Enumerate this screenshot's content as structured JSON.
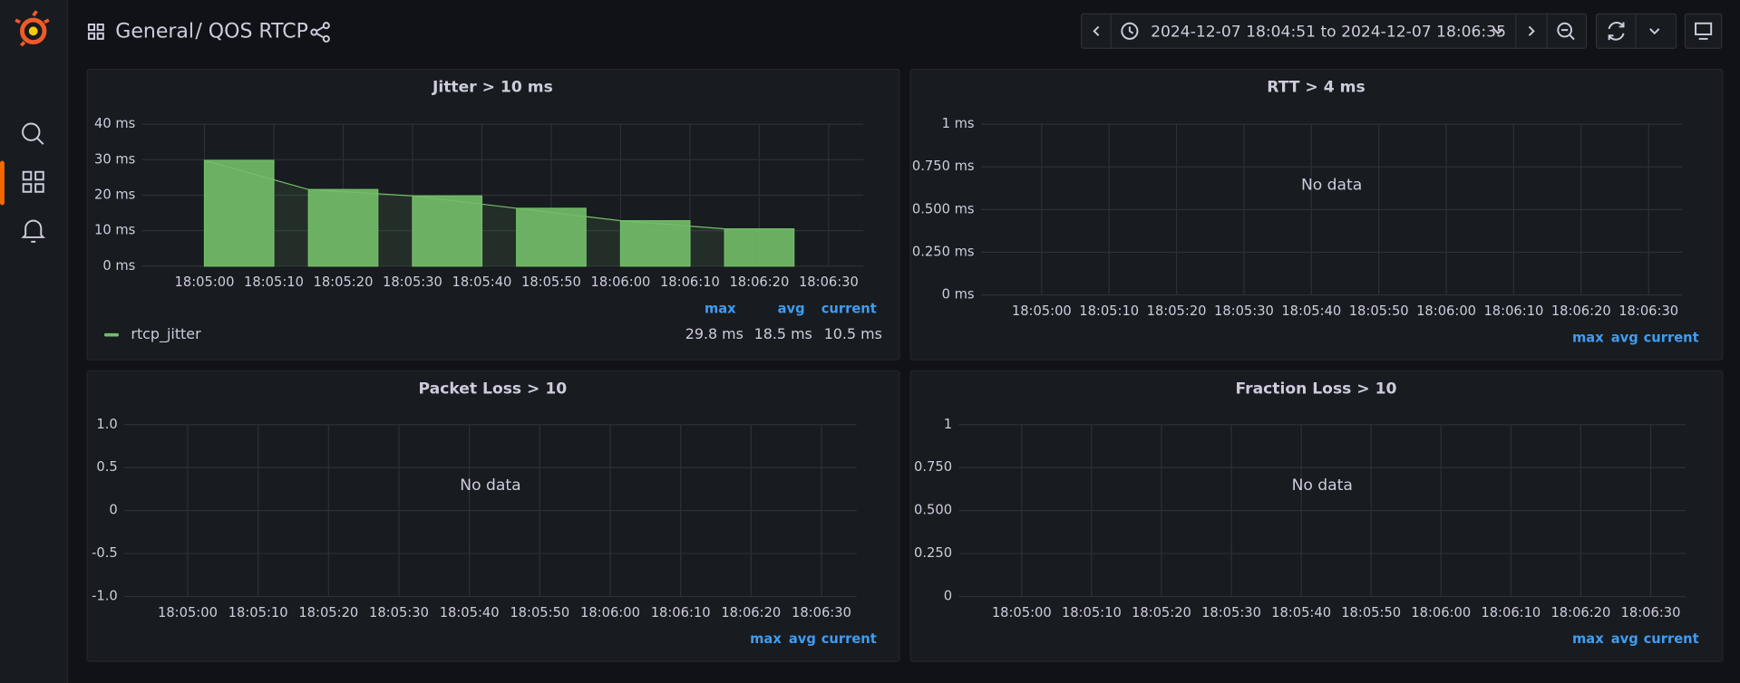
{
  "breadcrumb": {
    "folder": "General",
    "dashboard": "/ QOS RTCP"
  },
  "time_range": "2024-12-07 18:04:51 to 2024-12-07 18:06:35",
  "panels": [
    {
      "title": "Jitter > 10 ms",
      "type": "bar",
      "x": [
        "18:05:00",
        "18:05:15",
        "18:05:30",
        "18:05:45",
        "18:06:00",
        "18:06:15"
      ],
      "series": [
        {
          "name": "rtcp_jitter",
          "color": "#73bf69",
          "values": [
            29.8,
            21.6,
            19.8,
            16.3,
            12.8,
            10.5
          ]
        }
      ],
      "xlim": [
        "18:04:51",
        "18:06:35"
      ],
      "xticks": [
        "18:05:00",
        "18:05:10",
        "18:05:20",
        "18:05:30",
        "18:05:40",
        "18:05:50",
        "18:06:00",
        "18:06:10",
        "18:06:20",
        "18:06:30"
      ],
      "ylim": [
        0,
        40
      ],
      "yticks": [
        {
          "value": 0,
          "label": "0 ms"
        },
        {
          "value": 10,
          "label": "10 ms"
        },
        {
          "value": 20,
          "label": "20 ms"
        },
        {
          "value": 30,
          "label": "30 ms"
        },
        {
          "value": 40,
          "label": "40 ms"
        }
      ],
      "grid": true,
      "legend": {
        "headers": [
          "max",
          "avg",
          "current"
        ],
        "values": [
          29.8,
          18.5,
          10.5
        ],
        "value_labels": [
          "29.8 ms",
          "18.5 ms",
          "10.5 ms"
        ]
      }
    },
    {
      "title": "RTT > 4 ms",
      "type": "line",
      "no_data": "No data",
      "xlim": [
        "18:04:51",
        "18:06:35"
      ],
      "xticks": [
        "18:05:00",
        "18:05:10",
        "18:05:20",
        "18:05:30",
        "18:05:40",
        "18:05:50",
        "18:06:00",
        "18:06:10",
        "18:06:20",
        "18:06:30"
      ],
      "ylim": [
        0,
        1
      ],
      "yticks": [
        {
          "value": 0,
          "label": "0 ms"
        },
        {
          "value": 0.25,
          "label": "0.250 ms"
        },
        {
          "value": 0.5,
          "label": "0.500 ms"
        },
        {
          "value": 0.75,
          "label": "0.750 ms"
        },
        {
          "value": 1,
          "label": "1 ms"
        }
      ],
      "grid": true,
      "legend": {
        "headers": [
          "max",
          "avg",
          "current"
        ]
      }
    },
    {
      "title": "Packet Loss > 10",
      "type": "line",
      "no_data": "No data",
      "xlim": [
        "18:04:51",
        "18:06:35"
      ],
      "xticks": [
        "18:05:00",
        "18:05:10",
        "18:05:20",
        "18:05:30",
        "18:05:40",
        "18:05:50",
        "18:06:00",
        "18:06:10",
        "18:06:20",
        "18:06:30"
      ],
      "ylim": [
        -1,
        1
      ],
      "yticks": [
        {
          "value": -1,
          "label": "-1.0"
        },
        -0.5,
        0,
        0.5,
        {
          "value": 1,
          "label": "1.0"
        }
      ],
      "grid": true,
      "legend": {
        "headers": [
          "max",
          "avg",
          "current"
        ]
      }
    },
    {
      "title": "Fraction Loss > 10",
      "type": "line",
      "no_data": "No data",
      "xlim": [
        "18:04:51",
        "18:06:35"
      ],
      "xticks": [
        "18:05:00",
        "18:05:10",
        "18:05:20",
        "18:05:30",
        "18:05:40",
        "18:05:50",
        "18:06:00",
        "18:06:10",
        "18:06:20",
        "18:06:30"
      ],
      "ylim": [
        0,
        1
      ],
      "yticks": [
        0,
        {
          "value": 0.25,
          "label": "0.250"
        },
        {
          "value": 0.5,
          "label": "0.500"
        },
        {
          "value": 0.75,
          "label": "0.750"
        },
        1
      ],
      "grid": true,
      "legend": {
        "headers": [
          "max",
          "avg",
          "current"
        ]
      }
    }
  ]
}
